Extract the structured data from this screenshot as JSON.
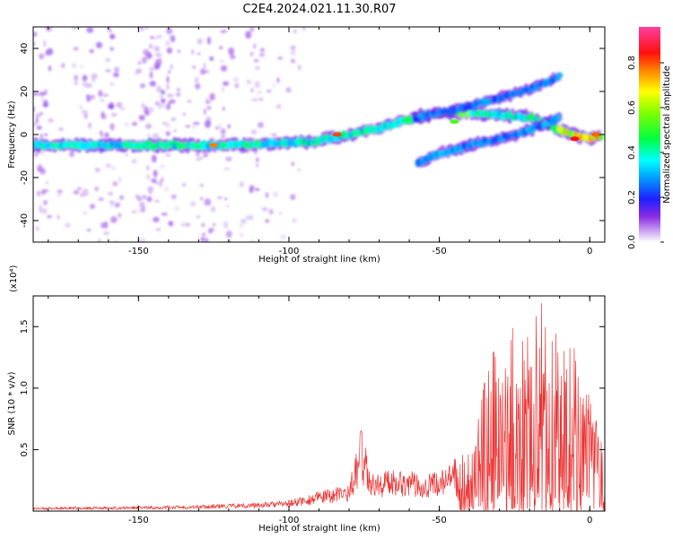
{
  "title": "C2E4.2024.021.11.30.R07",
  "chart_data": [
    {
      "type": "heatmap",
      "xlabel": "Height of straight line (km)",
      "ylabel": "Frequency (Hz)",
      "xlim": [
        -185,
        5
      ],
      "ylim": [
        -50,
        50
      ],
      "x_ticks": [
        -150,
        -100,
        -50,
        0
      ],
      "y_ticks": [
        40,
        20,
        0,
        -20,
        -40
      ],
      "colorbar": {
        "label": "Normalized spectral amplitude",
        "ticks": [
          0.0,
          0.2,
          0.4,
          0.6,
          0.8
        ],
        "range": [
          0,
          0.96
        ]
      },
      "main_trace": [
        [
          -185,
          -5
        ],
        [
          -150,
          -5
        ],
        [
          -125,
          -5
        ],
        [
          -100,
          -4
        ],
        [
          -90,
          -3
        ],
        [
          -80,
          0
        ],
        [
          -70,
          3
        ],
        [
          -60,
          7
        ],
        [
          -55,
          9
        ],
        [
          -50,
          10
        ],
        [
          -40,
          10
        ],
        [
          -30,
          9
        ],
        [
          -20,
          8
        ],
        [
          -10,
          2
        ],
        [
          0,
          -2
        ],
        [
          3,
          -1
        ]
      ],
      "upper_branch": [
        [
          -60,
          7
        ],
        [
          -50,
          10
        ],
        [
          -40,
          13
        ],
        [
          -30,
          17
        ],
        [
          -20,
          21
        ],
        [
          -15,
          24
        ],
        [
          -10,
          27
        ]
      ],
      "lower_branch": [
        [
          -57,
          -13
        ],
        [
          -50,
          -9
        ],
        [
          -40,
          -5
        ],
        [
          -30,
          -2
        ],
        [
          -20,
          2
        ],
        [
          -15,
          5
        ],
        [
          -10,
          8
        ]
      ]
    },
    {
      "type": "line",
      "xlabel": "Height of straight line (km)",
      "ylabel": "SNR (10 * v/v)",
      "y_multiplier": "(x10⁴)",
      "xlim": [
        -185,
        5
      ],
      "ylim": [
        0,
        1.75
      ],
      "x_ticks": [
        -150,
        -100,
        -50,
        0
      ],
      "y_ticks": [
        0.5,
        1.0,
        1.5
      ],
      "y_tick_labels": [
        "0.5",
        "1.0",
        "1.5"
      ],
      "series": [
        {
          "color": "#ee3333",
          "envelope": [
            [
              -185,
              0.03
            ],
            [
              -150,
              0.04
            ],
            [
              -130,
              0.05
            ],
            [
              -110,
              0.07
            ],
            [
              -100,
              0.09
            ],
            [
              -90,
              0.16
            ],
            [
              -80,
              0.22
            ],
            [
              -76,
              0.66
            ],
            [
              -72,
              0.3
            ],
            [
              -65,
              0.36
            ],
            [
              -55,
              0.3
            ],
            [
              -48,
              0.35
            ],
            [
              -42,
              0.5
            ],
            [
              -38,
              0.7
            ],
            [
              -34,
              1.25
            ],
            [
              -30,
              1.35
            ],
            [
              -28,
              1.25
            ],
            [
              -26,
              1.5
            ],
            [
              -20,
              1.58
            ],
            [
              -16,
              1.72
            ],
            [
              -13,
              1.6
            ],
            [
              -10,
              1.45
            ],
            [
              -5,
              1.4
            ],
            [
              -3,
              1.3
            ],
            [
              -1,
              1.0
            ],
            [
              2,
              0.75
            ],
            [
              5,
              0.45
            ]
          ]
        }
      ]
    }
  ]
}
